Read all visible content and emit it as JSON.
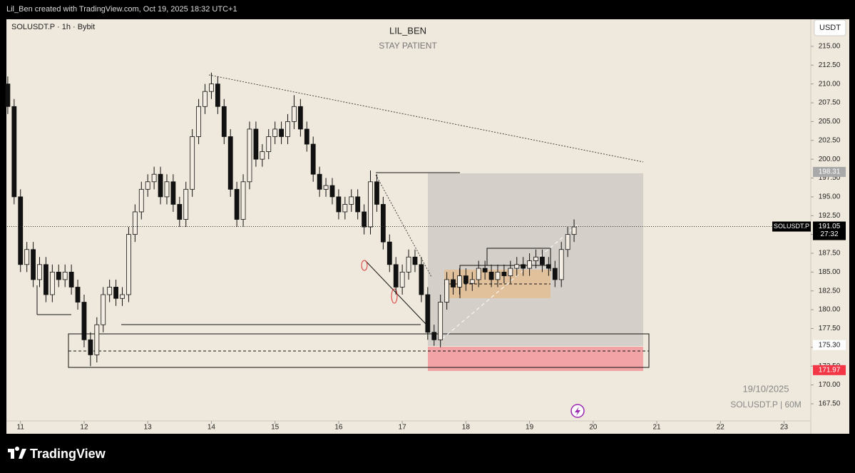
{
  "header": "Lil_Ben created with TradingView.com, Oct 19, 2025 18:32 UTC+1",
  "footer": "TradingView",
  "chart_data": {
    "type": "candlestick",
    "title": "LIL_BEN",
    "subtitle": "STAY PATIENT",
    "symbol_info": "SOLUSDT.P · 1h · Bybit",
    "currency": "USDT",
    "watermark": [
      "19/10/2025",
      "SOLUSDT.P | 60M"
    ],
    "up_color": "#f3ede3",
    "down_color": "#111111",
    "x": [
      10.8,
      10.9,
      11.0,
      11.1,
      11.2,
      11.3,
      11.4,
      11.5,
      11.6,
      11.7,
      11.8,
      11.9,
      12.0,
      12.1,
      12.2,
      12.3,
      12.4,
      12.5,
      12.6,
      12.7,
      12.8,
      12.9,
      13.0,
      13.1,
      13.2,
      13.3,
      13.4,
      13.5,
      13.6,
      13.7,
      13.8,
      13.9,
      14.0,
      14.1,
      14.2,
      14.3,
      14.4,
      14.5,
      14.6,
      14.7,
      14.8,
      14.9,
      15.0,
      15.1,
      15.2,
      15.3,
      15.4,
      15.5,
      15.6,
      15.7,
      15.8,
      15.9,
      16.0,
      16.1,
      16.2,
      16.3,
      16.4,
      16.5,
      16.6,
      16.7,
      16.8,
      16.9,
      17.0,
      17.1,
      17.2,
      17.3,
      17.4,
      17.5,
      17.6,
      17.7,
      17.8,
      17.9,
      18.0,
      18.1,
      18.2,
      18.3,
      18.4,
      18.5,
      18.6,
      18.7,
      18.8,
      18.9,
      19.0,
      19.1,
      19.2,
      19.3,
      19.4,
      19.5,
      19.6,
      19.7
    ],
    "open": [
      210,
      207,
      195,
      186,
      188,
      184,
      186,
      182,
      185,
      184,
      185,
      183,
      181,
      176,
      174,
      178,
      182,
      183,
      181.5,
      182,
      190,
      193,
      196,
      197,
      198,
      195,
      197,
      194,
      192,
      196,
      203,
      207,
      209,
      210,
      207,
      203,
      196,
      192,
      197,
      204,
      200,
      201,
      203,
      204,
      203,
      205,
      207,
      204,
      202,
      198,
      196,
      196.5,
      195,
      193,
      194,
      195,
      193,
      191,
      197,
      194,
      189,
      186,
      183,
      185,
      187,
      186,
      182,
      177,
      176,
      181,
      184,
      183,
      184.5,
      183.5,
      184,
      185.5,
      185,
      184,
      185,
      184.5,
      185.5,
      186,
      185.5,
      186.5,
      187,
      186,
      185.5,
      184,
      188,
      190
    ],
    "high": [
      211,
      208,
      196,
      189,
      189,
      187,
      187,
      186,
      186,
      186,
      186,
      184,
      182,
      177,
      179,
      183,
      184,
      184,
      183,
      191,
      194,
      197,
      198,
      199,
      199,
      198,
      198,
      195,
      197,
      204,
      208,
      210,
      211.5,
      211,
      208,
      204,
      197,
      198,
      205,
      205,
      202,
      204,
      205,
      205,
      206,
      208.5,
      208,
      205,
      203,
      199,
      197.5,
      197.5,
      196,
      195,
      196,
      196,
      194,
      198.5,
      198,
      195,
      190,
      187,
      186,
      188,
      188,
      187,
      183,
      178,
      182,
      185,
      185,
      185.5,
      185.5,
      185,
      186.5,
      186.5,
      186,
      186,
      186,
      186.5,
      187,
      187,
      187.5,
      188,
      188,
      187,
      186.5,
      189,
      191,
      192
    ],
    "low": [
      206,
      194,
      185,
      185,
      183,
      183,
      181,
      181,
      183,
      183,
      182,
      180,
      175,
      172.5,
      173,
      177,
      181,
      180.5,
      180.5,
      181,
      189,
      192,
      195,
      196,
      194,
      194,
      193,
      191,
      191,
      195,
      202,
      206,
      208,
      206,
      202,
      195,
      191,
      191,
      196,
      199,
      199,
      200,
      202,
      202,
      202,
      204,
      203,
      201,
      197,
      195,
      195,
      194,
      192,
      192,
      193,
      192,
      190,
      190,
      193,
      188,
      185,
      182,
      182,
      184,
      185,
      181,
      176,
      175.2,
      175,
      180,
      182,
      182,
      182.5,
      182.5,
      183,
      184,
      183,
      183,
      183.5,
      183.5,
      184.5,
      184.5,
      184.5,
      185.5,
      185,
      184.5,
      183,
      183,
      187,
      189
    ],
    "close": [
      207,
      195,
      186,
      188,
      184,
      186,
      182,
      185,
      184,
      185,
      183,
      181,
      176,
      174,
      178,
      182,
      183,
      181.5,
      182,
      190,
      193,
      196,
      197,
      198,
      195,
      197,
      194,
      192,
      196,
      203,
      207,
      209,
      210,
      207,
      203,
      196,
      192,
      197,
      204,
      200,
      201,
      203,
      204,
      203,
      205,
      207,
      204,
      202,
      198,
      196,
      196.5,
      195,
      193,
      194,
      195,
      193,
      191,
      197,
      194,
      189,
      186,
      183,
      185,
      187,
      186,
      182,
      177,
      176,
      181,
      184,
      183,
      184.5,
      183.5,
      184,
      185.5,
      185,
      184,
      185,
      184.5,
      185.5,
      186,
      185.5,
      186.5,
      187,
      186,
      185.5,
      184,
      188,
      190,
      191
    ],
    "xlim": [
      10.79,
      23.42
    ],
    "ylim": [
      165.22,
      218.5
    ],
    "xticks": [
      11,
      12,
      13,
      14,
      15,
      16,
      17,
      18,
      19,
      20,
      21,
      22,
      23
    ],
    "yticks": [
      {
        "value": 167.5,
        "label": "167.50"
      },
      {
        "value": 170,
        "label": "170.00"
      },
      {
        "value": 172.5,
        "label": "172.50"
      },
      {
        "value": 175,
        "label": "175.00"
      },
      {
        "value": 177.5,
        "label": "177.50"
      },
      {
        "value": 180,
        "label": "180.00"
      },
      {
        "value": 182.5,
        "label": "182.50"
      },
      {
        "value": 185,
        "label": "185.00"
      },
      {
        "value": 187.5,
        "label": "187.50"
      },
      {
        "value": 190,
        "label": "190.00"
      },
      {
        "value": 192.5,
        "label": "192.50"
      },
      {
        "value": 195,
        "label": "195.00"
      },
      {
        "value": 197.5,
        "label": "197.50"
      },
      {
        "value": 200,
        "label": "200.00"
      },
      {
        "value": 202.5,
        "label": "202.50"
      },
      {
        "value": 205,
        "label": "205.00"
      },
      {
        "value": 207.5,
        "label": "207.50"
      },
      {
        "value": 210,
        "label": "210.00"
      },
      {
        "value": 212.5,
        "label": "212.50"
      },
      {
        "value": 215,
        "label": "215.00"
      }
    ],
    "price_labels": [
      {
        "value": 198.31,
        "label": "198.31",
        "color": "#a9a9a9"
      },
      {
        "value": 175.3,
        "label": "175.30",
        "color": "#ffffff"
      },
      {
        "value": 171.97,
        "label": "171.97",
        "color": "#f23645"
      }
    ],
    "current_price": {
      "value": 191.05,
      "label": "191.05",
      "name": "SOLUSDT.P",
      "countdown": "27:32"
    }
  }
}
